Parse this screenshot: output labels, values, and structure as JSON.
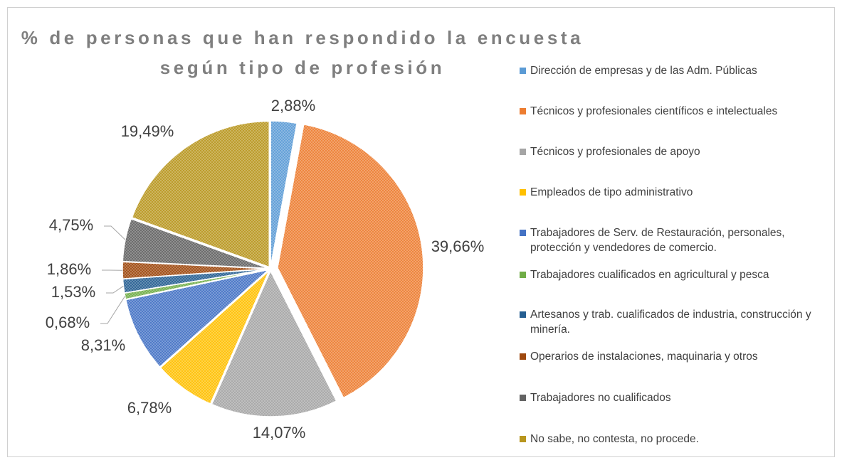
{
  "chart_data": {
    "type": "pie",
    "title": "% de personas que han respondido la encuesta\nsegún tipo de profesión",
    "categories": [
      "Dirección de empresas y de las Adm. Públicas",
      "Técnicos y profesionales científicos e intelectuales",
      "Técnicos y profesionales de apoyo",
      "Empleados de tipo administrativo",
      "Trabajadores de Serv. de Restauración, personales, protección y vendedores de comercio.",
      "Trabajadores cualificados en agricultural y pesca",
      "Artesanos y trab. cualificados de industria, construcción y minería.",
      "Operarios de instalaciones, maquinaria y otros",
      "Trabajadores no cualificados",
      "No sabe, no contesta, no procede."
    ],
    "values": [
      2.88,
      39.66,
      14.07,
      6.78,
      8.31,
      0.68,
      1.53,
      1.86,
      4.75,
      19.49
    ],
    "value_labels": [
      "2,88%",
      "39,66%",
      "14,07%",
      "6,78%",
      "8,31%",
      "0,68%",
      "1,53%",
      "1,86%",
      "4,75%",
      "19,49%"
    ],
    "colors": [
      "#5b9bd5",
      "#ed7d31",
      "#a5a5a5",
      "#ffc000",
      "#4472c4",
      "#70ad47",
      "#255e91",
      "#9e480e",
      "#636363",
      "#b8961e"
    ],
    "legend": "right"
  }
}
